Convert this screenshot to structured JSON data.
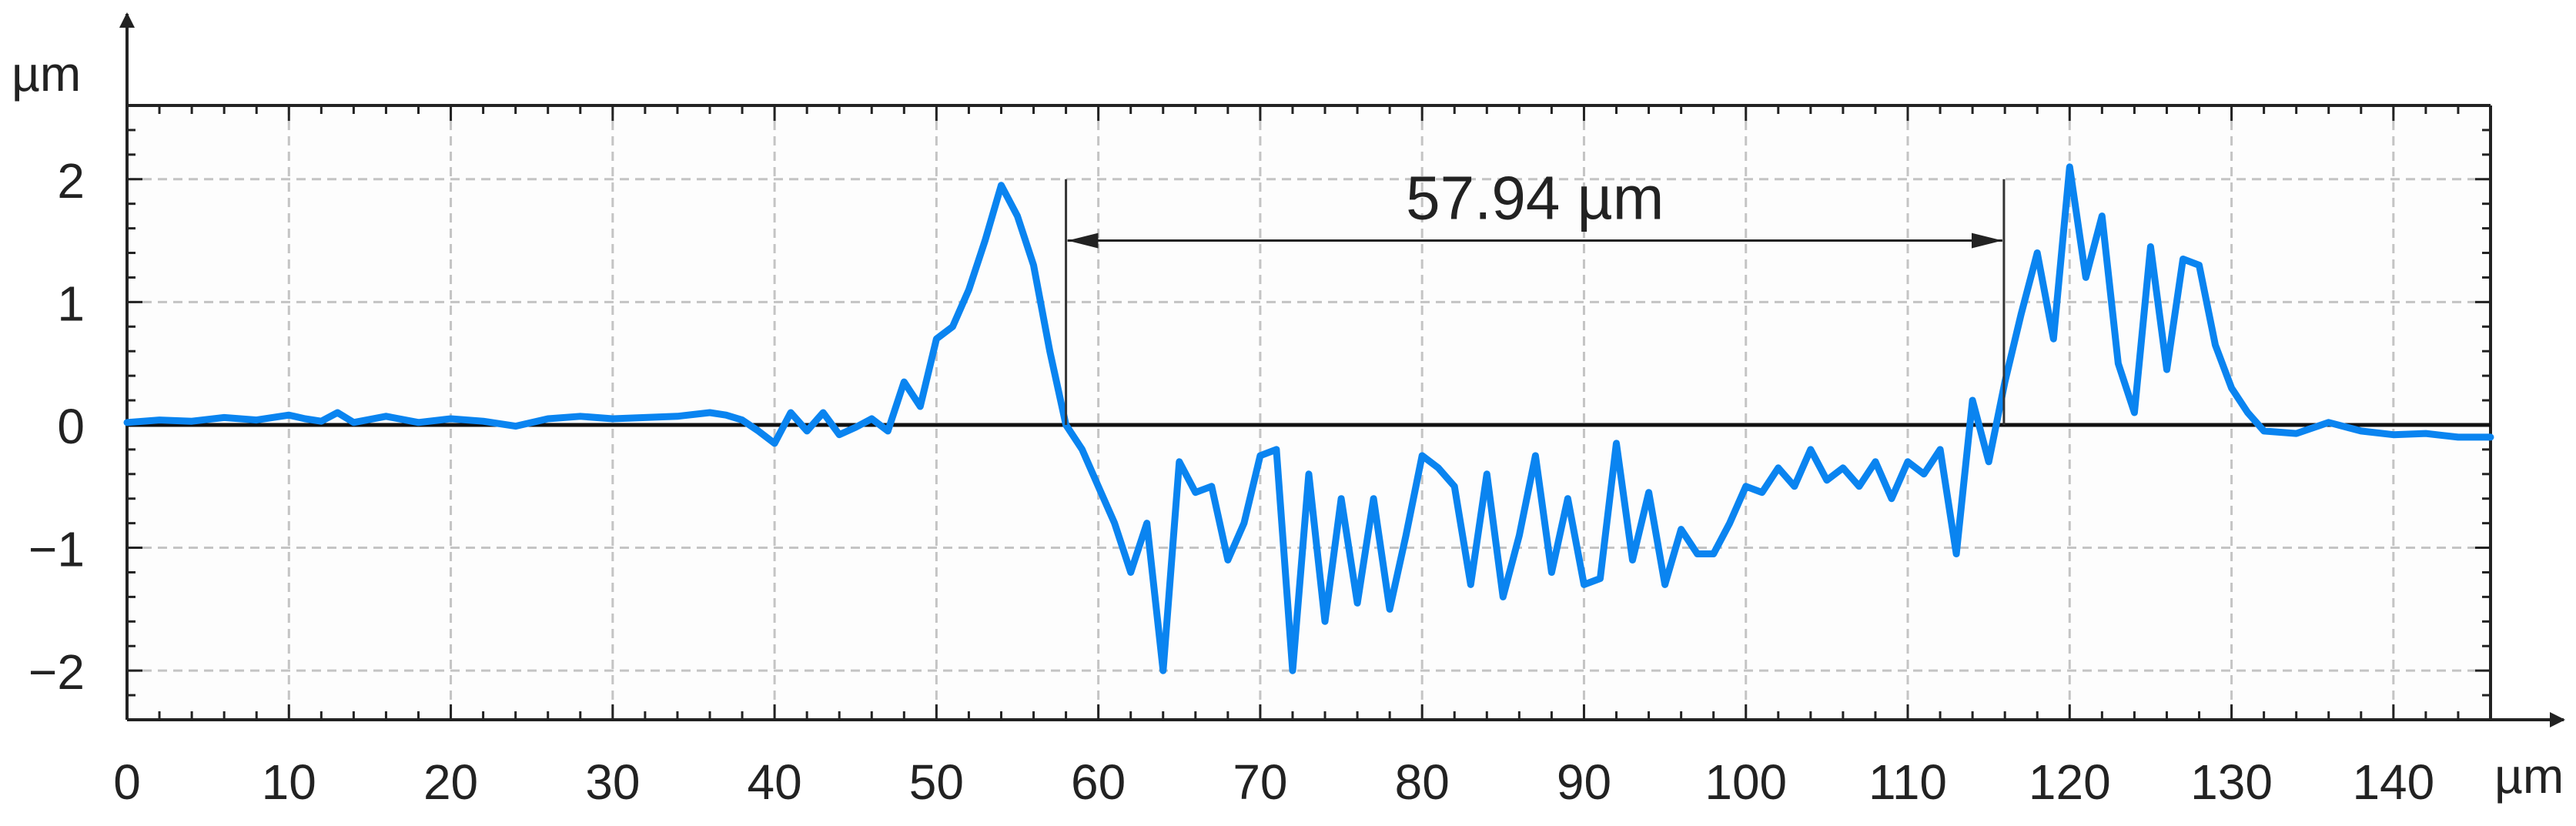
{
  "chart_data": {
    "type": "line",
    "xunit": "µm",
    "yunit": "µm",
    "xlim": [
      0,
      146
    ],
    "ylim": [
      -2.4,
      2.6
    ],
    "grid": true,
    "xticks": [
      0,
      10,
      20,
      30,
      40,
      50,
      60,
      70,
      80,
      90,
      100,
      110,
      120,
      130,
      140
    ],
    "yticks": [
      -2,
      -1,
      0,
      1,
      2
    ],
    "xtick_labels": [
      "0",
      "10",
      "20",
      "30",
      "40",
      "50",
      "60",
      "70",
      "80",
      "90",
      "100",
      "110",
      "120",
      "130",
      "140"
    ],
    "ytick_labels": [
      "−2",
      "−1",
      "0",
      "1",
      "2"
    ],
    "series": [
      {
        "color": "#0a84f0",
        "x": [
          0,
          2,
          4,
          6,
          8,
          10,
          11,
          12,
          13,
          14,
          16,
          18,
          20,
          22,
          24,
          26,
          28,
          30,
          32,
          34,
          36,
          37,
          38,
          39,
          40,
          41,
          42,
          43,
          44,
          45,
          46,
          47,
          48,
          49,
          50,
          51,
          52,
          53,
          54,
          55,
          56,
          57,
          58,
          59,
          60,
          61,
          62,
          63,
          64,
          65,
          66,
          67,
          68,
          69,
          70,
          71,
          72,
          73,
          74,
          75,
          76,
          77,
          78,
          79,
          80,
          81,
          82,
          83,
          84,
          85,
          86,
          87,
          88,
          89,
          90,
          91,
          92,
          93,
          94,
          95,
          96,
          97,
          98,
          99,
          100,
          101,
          102,
          103,
          104,
          105,
          106,
          107,
          108,
          109,
          110,
          111,
          112,
          113,
          114,
          115,
          116,
          117,
          118,
          119,
          120,
          121,
          122,
          123,
          124,
          125,
          126,
          127,
          128,
          129,
          130,
          131,
          132,
          134,
          136,
          138,
          140,
          142,
          144,
          146
        ],
        "y": [
          0.02,
          0.04,
          0.03,
          0.06,
          0.04,
          0.08,
          0.05,
          0.03,
          0.1,
          0.02,
          0.07,
          0.02,
          0.05,
          0.03,
          -0.01,
          0.05,
          0.07,
          0.05,
          0.06,
          0.07,
          0.1,
          0.08,
          0.04,
          -0.05,
          -0.15,
          0.1,
          -0.05,
          0.1,
          -0.08,
          -0.02,
          0.05,
          -0.05,
          0.35,
          0.15,
          0.7,
          0.8,
          1.1,
          1.5,
          1.95,
          1.7,
          1.3,
          0.6,
          0.0,
          -0.2,
          -0.5,
          -0.8,
          -1.2,
          -0.8,
          -2.0,
          -0.3,
          -0.55,
          -0.5,
          -1.1,
          -0.8,
          -0.25,
          -0.2,
          -2.0,
          -0.4,
          -1.6,
          -0.6,
          -1.45,
          -0.6,
          -1.5,
          -0.9,
          -0.25,
          -0.35,
          -0.5,
          -1.3,
          -0.4,
          -1.4,
          -0.9,
          -0.25,
          -1.2,
          -0.6,
          -1.3,
          -1.25,
          -0.15,
          -1.1,
          -0.55,
          -1.3,
          -0.85,
          -1.05,
          -1.05,
          -0.8,
          -0.5,
          -0.55,
          -0.35,
          -0.5,
          -0.2,
          -0.45,
          -0.35,
          -0.5,
          -0.3,
          -0.6,
          -0.3,
          -0.4,
          -0.2,
          -1.05,
          0.2,
          -0.3,
          0.35,
          0.9,
          1.4,
          0.7,
          2.1,
          1.2,
          1.7,
          0.5,
          0.1,
          1.45,
          0.45,
          1.35,
          1.3,
          0.65,
          0.3,
          0.1,
          -0.05,
          -0.07,
          0.02,
          -0.05,
          -0.08,
          -0.07,
          -0.1,
          -0.1
        ],
        "marks": "solid line"
      }
    ],
    "annotations": [
      {
        "type": "dimension",
        "x_start": 58,
        "x_end": 115.94,
        "y": 1.5,
        "label": "57.94 µm"
      }
    ]
  }
}
